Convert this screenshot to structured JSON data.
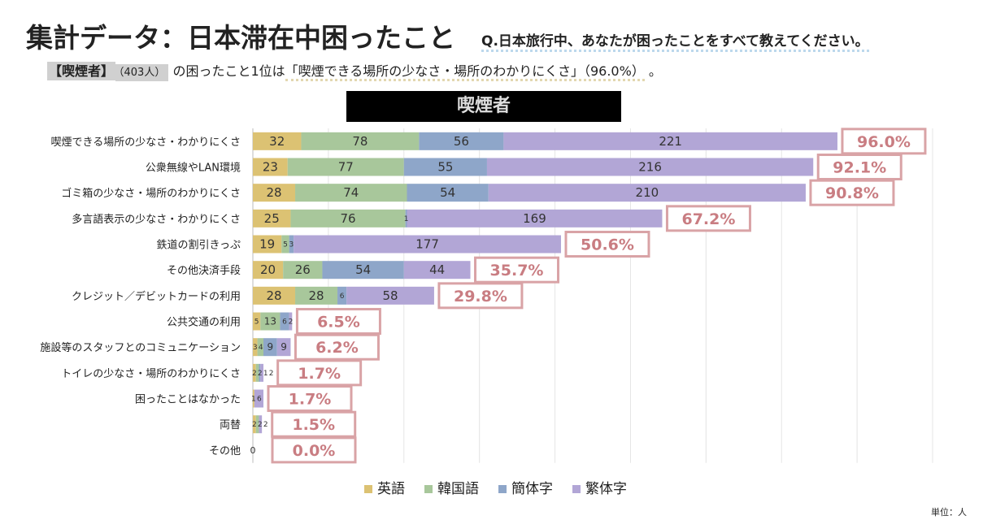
{
  "header": {
    "title": "集計データ：日本滞在中困ったこと",
    "question": "Q.日本旅行中、あなたが困ったことをすべて教えてください。",
    "summary_tag": "【喫煙者】",
    "summary_count": "（403人）",
    "summary_text": "の困ったこと1位は",
    "summary_highlight": "「喫煙できる場所の少なさ・場所のわかりにくさ」（96.0%）",
    "summary_end": "。"
  },
  "panel_title": "喫煙者",
  "unit": "単位：人",
  "colors": {
    "英語": "#dcc273",
    "韓国語": "#a8c79b",
    "簡体字": "#8ea6c9",
    "繁体字": "#b2a6d6",
    "pct_border": "#d9a3a6",
    "pct_text": "#c97d82"
  },
  "chart_data": {
    "type": "bar",
    "orientation": "horizontal",
    "stacked": true,
    "xlim": [
      0,
      450
    ],
    "grid": true,
    "legend": "bottom",
    "series_names": [
      "英語",
      "韓国語",
      "簡体字",
      "繁体字"
    ],
    "categories": [
      "喫煙できる場所の少なさ・わかりにくさ",
      "公衆無線やLAN環境",
      "ゴミ箱の少なさ・場所のわかりにくさ",
      "多言語表示の少なさ・わかりにくさ",
      "鉄道の割引きっぷ",
      "その他決済手段",
      "クレジット／デビットカードの利用",
      "公共交通の利用",
      "施設等のスタッフとのコミュニケーション",
      "トイレの少なさ・場所のわかりにくさ",
      "困ったことはなかった",
      "両替",
      "その他"
    ],
    "series": [
      {
        "name": "英語",
        "values": [
          32,
          23,
          28,
          25,
          19,
          20,
          28,
          5,
          3,
          2,
          1,
          2,
          0
        ]
      },
      {
        "name": "韓国語",
        "values": [
          78,
          77,
          74,
          76,
          5,
          26,
          28,
          13,
          4,
          2,
          0,
          2,
          0
        ]
      },
      {
        "name": "簡体字",
        "values": [
          56,
          55,
          54,
          1,
          3,
          54,
          6,
          6,
          9,
          1,
          0,
          0,
          0
        ]
      },
      {
        "name": "繁体字",
        "values": [
          221,
          216,
          210,
          169,
          177,
          44,
          58,
          2,
          9,
          2,
          6,
          2,
          0
        ]
      }
    ],
    "percent_labels": [
      "96.0%",
      "92.1%",
      "90.8%",
      "67.2%",
      "50.6%",
      "35.7%",
      "29.8%",
      "6.5%",
      "6.2%",
      "1.7%",
      "1.7%",
      "1.5%",
      "0.0%"
    ],
    "zero_label": "0"
  }
}
